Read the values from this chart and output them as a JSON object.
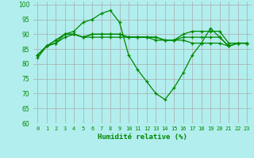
{
  "xlabel": "Humidité relative (%)",
  "background_color": "#b2eeee",
  "grid_color": "#aaaaaa",
  "line_color": "#008800",
  "xlim": [
    -0.5,
    23.5
  ],
  "ylim": [
    60,
    101
  ],
  "yticks": [
    60,
    65,
    70,
    75,
    80,
    85,
    90,
    95,
    100
  ],
  "xticks": [
    0,
    1,
    2,
    3,
    4,
    5,
    6,
    7,
    8,
    9,
    10,
    11,
    12,
    13,
    14,
    15,
    16,
    17,
    18,
    19,
    20,
    21,
    22,
    23
  ],
  "series": [
    [
      82,
      86,
      87,
      90,
      91,
      94,
      95,
      97,
      98,
      94,
      83,
      78,
      74,
      70,
      68,
      72,
      77,
      83,
      87,
      92,
      89,
      86,
      87,
      87
    ],
    [
      83,
      86,
      88,
      90,
      90,
      89,
      90,
      90,
      90,
      90,
      89,
      89,
      89,
      89,
      88,
      88,
      89,
      89,
      89,
      89,
      89,
      86,
      87,
      87
    ],
    [
      83,
      86,
      88,
      90,
      90,
      89,
      90,
      90,
      90,
      90,
      89,
      89,
      89,
      89,
      88,
      88,
      90,
      91,
      91,
      91,
      91,
      87,
      87,
      87
    ],
    [
      83,
      86,
      87,
      89,
      90,
      89,
      89,
      89,
      89,
      89,
      89,
      89,
      89,
      88,
      88,
      88,
      88,
      87,
      87,
      87,
      87,
      86,
      87,
      87
    ]
  ]
}
